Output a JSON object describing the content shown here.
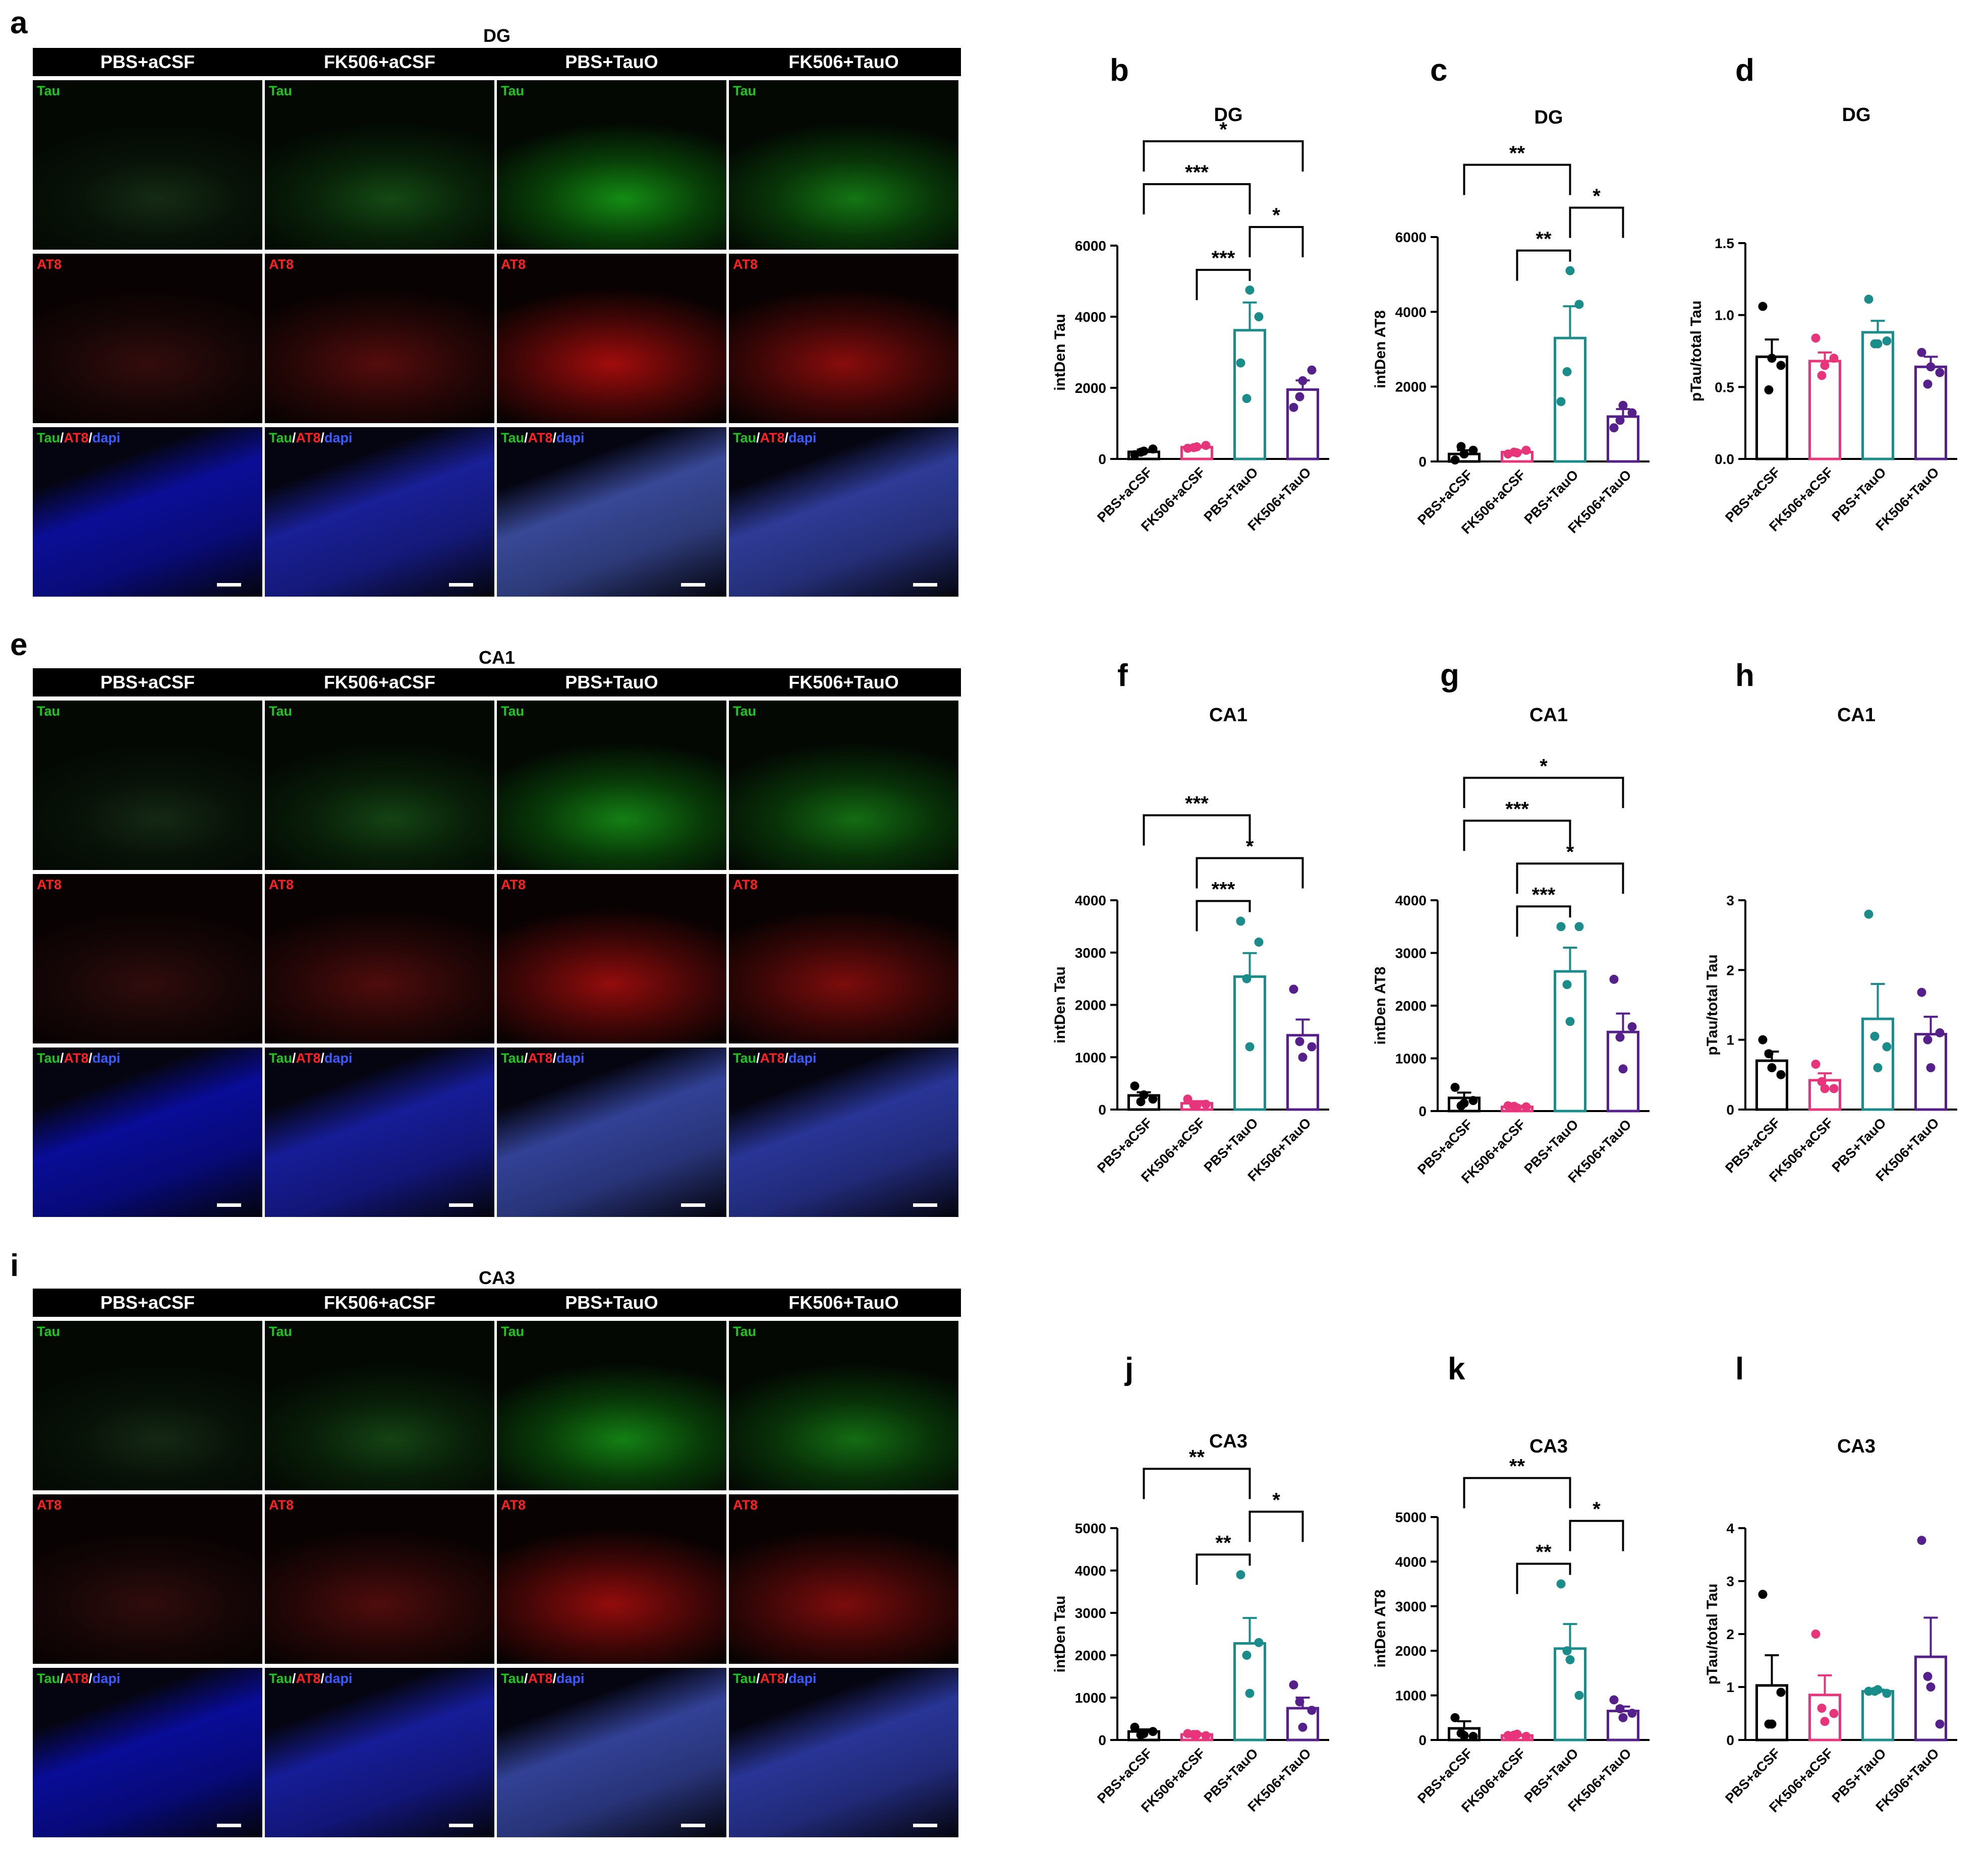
{
  "figure": {
    "panel_rows": [
      {
        "letter": "a",
        "region": "DG",
        "columns": [
          "PBS+aCSF",
          "FK506+aCSF",
          "PBS+TauO",
          "FK506+TauO"
        ],
        "row_labels": [
          "Tau",
          "AT8",
          "Tau/AT8/dapi"
        ],
        "label_colors": {
          "Tau": "#19c819",
          "AT8": "#ff2020",
          "dapi": "#3a5bff",
          "slash": "#ffffff"
        }
      },
      {
        "letter": "e",
        "region": "CA1",
        "columns": [
          "PBS+aCSF",
          "FK506+aCSF",
          "PBS+TauO",
          "FK506+TauO"
        ],
        "row_labels": [
          "Tau",
          "AT8",
          "Tau/AT8/dapi"
        ]
      },
      {
        "letter": "i",
        "region": "CA3",
        "columns": [
          "PBS+aCSF",
          "FK506+aCSF",
          "PBS+TauO",
          "FK506+TauO"
        ],
        "row_labels": [
          "Tau",
          "AT8",
          "Tau/AT8/dapi"
        ]
      }
    ],
    "group_colors": [
      "#000000",
      "#e8347a",
      "#1a8c8a",
      "#56208c"
    ]
  },
  "chart_data": [
    {
      "letter": "b",
      "title": "DG",
      "type": "bar",
      "ylabel": "intDen Tau",
      "ylim": [
        0,
        6000
      ],
      "ticks": [
        0,
        2000,
        4000,
        6000
      ],
      "categories": [
        "PBS+aCSF",
        "FK506+aCSF",
        "PBS+TauO",
        "FK506+TauO"
      ],
      "values": [
        200,
        330,
        3620,
        1950
      ],
      "sem": [
        60,
        40,
        780,
        260
      ],
      "points": [
        [
          120,
          220,
          280,
          190
        ],
        [
          300,
          340,
          380,
          320
        ],
        [
          2700,
          4750,
          4000,
          1700
        ],
        [
          1450,
          2200,
          2500,
          1750
        ]
      ],
      "significance": [
        {
          "from": 0,
          "to": 3,
          "label": "*"
        },
        {
          "from": 0,
          "to": 2,
          "label": "***"
        },
        {
          "from": 1,
          "to": 2,
          "label": "***"
        },
        {
          "from": 2,
          "to": 3,
          "label": "*"
        }
      ]
    },
    {
      "letter": "c",
      "title": "DG",
      "type": "bar",
      "ylabel": "intDen AT8",
      "ylim": [
        0,
        6000
      ],
      "ticks": [
        0,
        2000,
        4000,
        6000
      ],
      "categories": [
        "PBS+aCSF",
        "FK506+aCSF",
        "PBS+TauO",
        "FK506+TauO"
      ],
      "values": [
        200,
        250,
        3300,
        1200
      ],
      "sem": [
        100,
        40,
        850,
        200
      ],
      "points": [
        [
          40,
          200,
          300,
          400
        ],
        [
          200,
          230,
          300,
          250
        ],
        [
          1600,
          5100,
          4200,
          2400
        ],
        [
          900,
          1500,
          1300,
          1100
        ]
      ],
      "significance": [
        {
          "from": 0,
          "to": 2,
          "label": "**"
        },
        {
          "from": 1,
          "to": 2,
          "label": "**"
        },
        {
          "from": 2,
          "to": 3,
          "label": "*"
        }
      ]
    },
    {
      "letter": "d",
      "title": "DG",
      "type": "bar",
      "ylabel": "pTau/total Tau",
      "ylim": [
        0,
        1.5
      ],
      "ticks": [
        "0.0",
        "0.5",
        "1.0",
        "1.5"
      ],
      "categories": [
        "PBS+aCSF",
        "FK506+aCSF",
        "PBS+TauO",
        "FK506+TauO"
      ],
      "values": [
        0.71,
        0.68,
        0.88,
        0.64
      ],
      "sem": [
        0.12,
        0.06,
        0.08,
        0.07
      ],
      "points": [
        [
          1.06,
          0.7,
          0.65,
          0.48
        ],
        [
          0.84,
          0.65,
          0.7,
          0.58
        ],
        [
          1.11,
          0.8,
          0.82,
          0.8
        ],
        [
          0.74,
          0.64,
          0.6,
          0.52
        ]
      ],
      "significance": []
    },
    {
      "letter": "f",
      "title": "CA1",
      "type": "bar",
      "ylabel": "intDen Tau",
      "ylim": [
        0,
        4000
      ],
      "ticks": [
        0,
        1000,
        2000,
        3000,
        4000
      ],
      "categories": [
        "PBS+aCSF",
        "FK506+aCSF",
        "PBS+TauO",
        "FK506+TauO"
      ],
      "values": [
        270,
        120,
        2540,
        1420
      ],
      "sem": [
        60,
        40,
        450,
        300
      ],
      "points": [
        [
          450,
          280,
          200,
          150
        ],
        [
          200,
          80,
          100,
          90
        ],
        [
          3600,
          1200,
          3200,
          2500
        ],
        [
          2300,
          1000,
          1200,
          1300
        ]
      ],
      "significance": [
        {
          "from": 1,
          "to": 3,
          "label": "*"
        },
        {
          "from": 0,
          "to": 2,
          "label": "***"
        },
        {
          "from": 1,
          "to": 2,
          "label": "***"
        }
      ]
    },
    {
      "letter": "g",
      "title": "CA1",
      "type": "bar",
      "ylabel": "intDen AT8",
      "ylim": [
        0,
        4000
      ],
      "ticks": [
        0,
        1000,
        2000,
        3000,
        4000
      ],
      "categories": [
        "PBS+aCSF",
        "FK506+aCSF",
        "PBS+TauO",
        "FK506+TauO"
      ],
      "values": [
        250,
        80,
        2650,
        1500
      ],
      "sem": [
        100,
        20,
        450,
        350
      ],
      "points": [
        [
          450,
          150,
          200,
          100
        ],
        [
          100,
          60,
          80,
          90
        ],
        [
          3500,
          1700,
          3500,
          2400
        ],
        [
          2500,
          800,
          1600,
          1400
        ]
      ],
      "significance": [
        {
          "from": 0,
          "to": 3,
          "label": "*"
        },
        {
          "from": 1,
          "to": 3,
          "label": "*"
        },
        {
          "from": 0,
          "to": 2,
          "label": "***"
        },
        {
          "from": 1,
          "to": 2,
          "label": "***"
        }
      ]
    },
    {
      "letter": "h",
      "title": "CA1",
      "type": "bar",
      "ylabel": "pTau/total Tau",
      "ylim": [
        0,
        3
      ],
      "ticks": [
        0,
        1,
        2,
        3
      ],
      "categories": [
        "PBS+aCSF",
        "FK506+aCSF",
        "PBS+TauO",
        "FK506+TauO"
      ],
      "values": [
        0.7,
        0.42,
        1.3,
        1.08
      ],
      "sem": [
        0.13,
        0.1,
        0.5,
        0.25
      ],
      "points": [
        [
          1.0,
          0.6,
          0.5,
          0.8
        ],
        [
          0.65,
          0.3,
          0.3,
          0.4
        ],
        [
          2.8,
          0.6,
          0.9,
          1.05
        ],
        [
          1.68,
          0.6,
          1.1,
          1.0
        ]
      ],
      "significance": []
    },
    {
      "letter": "j",
      "title": "CA3",
      "type": "bar",
      "ylabel": "intDen Tau",
      "ylim": [
        0,
        5000
      ],
      "ticks": [
        0,
        1000,
        2000,
        3000,
        4000,
        5000
      ],
      "categories": [
        "PBS+aCSF",
        "FK506+aCSF",
        "PBS+TauO",
        "FK506+TauO"
      ],
      "values": [
        200,
        130,
        2280,
        750
      ],
      "sem": [
        50,
        20,
        600,
        250
      ],
      "points": [
        [
          300,
          150,
          200,
          120
        ],
        [
          150,
          130,
          100,
          130
        ],
        [
          3900,
          1100,
          2300,
          2000
        ],
        [
          1300,
          300,
          700,
          900
        ]
      ],
      "significance": [
        {
          "from": 0,
          "to": 2,
          "label": "**"
        },
        {
          "from": 1,
          "to": 2,
          "label": "**"
        },
        {
          "from": 2,
          "to": 3,
          "label": "*"
        }
      ]
    },
    {
      "letter": "k",
      "title": "CA3",
      "type": "bar",
      "ylabel": "intDen AT8",
      "ylim": [
        0,
        5000
      ],
      "ticks": [
        0,
        1000,
        2000,
        3000,
        4000,
        5000
      ],
      "categories": [
        "PBS+aCSF",
        "FK506+aCSF",
        "PBS+TauO",
        "FK506+TauO"
      ],
      "values": [
        260,
        100,
        2050,
        650
      ],
      "sem": [
        160,
        20,
        550,
        100
      ],
      "points": [
        [
          500,
          100,
          80,
          150
        ],
        [
          100,
          130,
          80,
          110
        ],
        [
          3500,
          1800,
          1000,
          2000
        ],
        [
          900,
          500,
          600,
          700
        ]
      ],
      "significance": [
        {
          "from": 0,
          "to": 2,
          "label": "**"
        },
        {
          "from": 1,
          "to": 2,
          "label": "**"
        },
        {
          "from": 2,
          "to": 3,
          "label": "*"
        }
      ]
    },
    {
      "letter": "l",
      "title": "CA3",
      "type": "bar",
      "ylabel": "pTau/total Tau",
      "ylim": [
        0,
        4
      ],
      "ticks": [
        0,
        1,
        2,
        3,
        4
      ],
      "categories": [
        "PBS+aCSF",
        "FK506+aCSF",
        "PBS+TauO",
        "FK506+TauO"
      ],
      "values": [
        1.03,
        0.85,
        0.92,
        1.57
      ],
      "sem": [
        0.57,
        0.37,
        0.03,
        0.74
      ],
      "points": [
        [
          2.75,
          0.3,
          0.9,
          0.3
        ],
        [
          2.0,
          0.35,
          0.5,
          0.6
        ],
        [
          0.92,
          0.95,
          0.88,
          0.92
        ],
        [
          3.77,
          1.0,
          0.3,
          1.2
        ]
      ],
      "significance": []
    }
  ]
}
